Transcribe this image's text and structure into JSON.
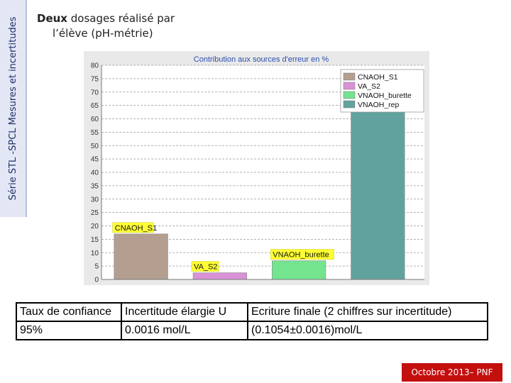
{
  "side_label": "Série STL -SPCL Mesures et incertitudes",
  "title": {
    "bold": "Deux",
    "line1_rest": " dosages réalisé par",
    "line2": "l’élève (pH-métrie)"
  },
  "chart_data": {
    "type": "bar",
    "title": "Contribution aux sources d'erreur en %",
    "categories": [
      "CNAOH_S1",
      "VA_S2",
      "VNAOH_burette",
      "VNAOH_rep"
    ],
    "values": [
      17,
      2.5,
      7,
      74
    ],
    "ylim": [
      0,
      80
    ],
    "yticks": [
      0,
      5,
      10,
      15,
      20,
      25,
      30,
      35,
      40,
      45,
      50,
      55,
      60,
      65,
      70,
      75,
      80
    ],
    "bar_labels": [
      "CNAOH_S1",
      "VA_S2",
      "VNAOH_burette",
      "VNAOH_rep"
    ],
    "legend": {
      "position": "top-right",
      "entries": [
        "CNAOH_S1",
        "VA_S2",
        "VNAOH_burette",
        "VNAOH_rep"
      ]
    },
    "colors": [
      "#b39e90",
      "#d992d6",
      "#74e48e",
      "#61a29e"
    ],
    "label_box_color": "#ffff33",
    "grid": true
  },
  "table": {
    "headers": [
      "Taux de confiance",
      "Incertitude élargie U",
      "Ecriture finale (2 chiffres sur incertitude)"
    ],
    "row": [
      "95%",
      "0.0016 mol/L",
      "(0.1054±0.0016)mol/L"
    ]
  },
  "footer": "Octobre 2013– PNF"
}
